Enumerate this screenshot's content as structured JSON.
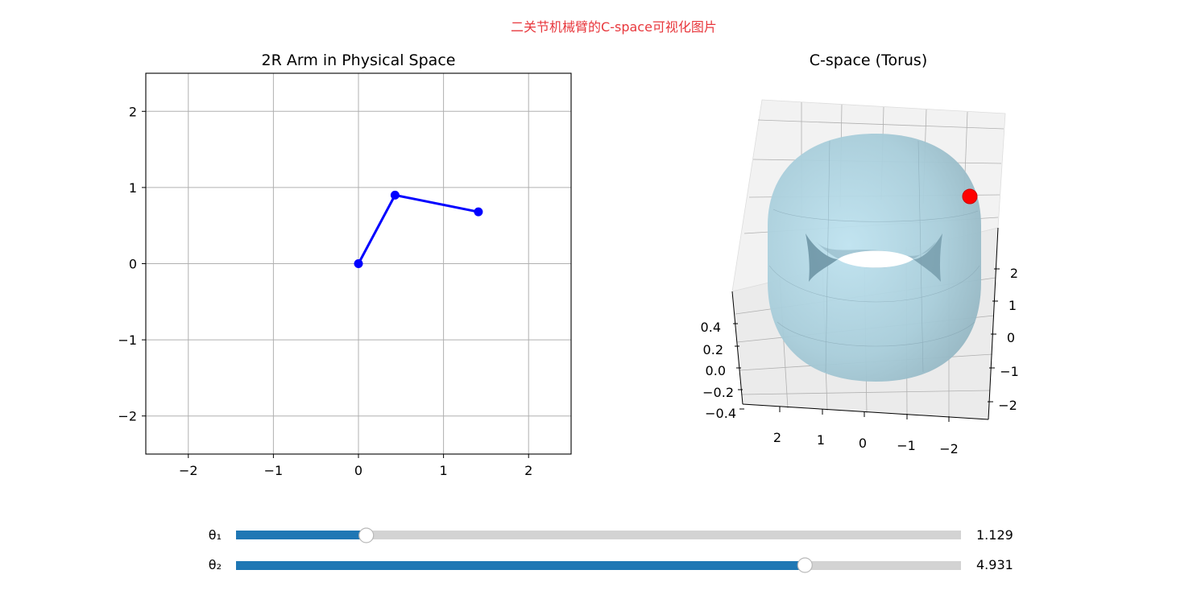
{
  "suptitle": "二关节机械臂的C-space可视化图片",
  "colors": {
    "suptitle": "#e8383d",
    "arm": "#0000ff",
    "torus": "#add8e6",
    "marker": "#ff0000",
    "slider_fill": "#1f77b4",
    "slider_track": "#d3d3d3",
    "grid": "#b0b0b0"
  },
  "chart_data": [
    {
      "type": "line",
      "title": "2R Arm in Physical Space",
      "xlabel": "",
      "ylabel": "",
      "xlim": [
        -2.5,
        2.5
      ],
      "ylim": [
        -2.5,
        2.5
      ],
      "xticks": [
        -2,
        -1,
        0,
        1,
        2
      ],
      "yticks": [
        -2,
        -1,
        0,
        1,
        2
      ],
      "xtick_labels": [
        "−2",
        "−1",
        "0",
        "1",
        "2"
      ],
      "ytick_labels": [
        "−2",
        "−1",
        "0",
        "1",
        "2"
      ],
      "grid": true,
      "series": [
        {
          "x": [
            0,
            0.43,
            1.41
          ],
          "y": [
            0,
            0.9,
            0.68
          ],
          "marker": "circle"
        }
      ]
    },
    {
      "type": "surface3d",
      "title": "C-space (Torus)",
      "surface": "torus",
      "major_radius": 2,
      "minor_radius": 0.5,
      "x_ticks": [
        "2",
        "1",
        "0",
        "−1",
        "−2"
      ],
      "y_ticks": [
        "2",
        "1",
        "0",
        "−1",
        "−2"
      ],
      "z_ticks": [
        "0.4",
        "0.2",
        "0.0",
        "−0.2",
        "−0.4"
      ],
      "xlim": [
        -2.5,
        2.5
      ],
      "ylim": [
        -2.5,
        2.5
      ],
      "zlim": [
        -0.5,
        0.5
      ],
      "current_point": {
        "theta1": 1.129,
        "theta2": 4.931
      }
    }
  ],
  "sliders": [
    {
      "label": "θ₁",
      "value": 1.129,
      "value_text": "1.129",
      "min": 0,
      "max": 6.283
    },
    {
      "label": "θ₂",
      "value": 4.931,
      "value_text": "4.931",
      "min": 0,
      "max": 6.283
    }
  ]
}
